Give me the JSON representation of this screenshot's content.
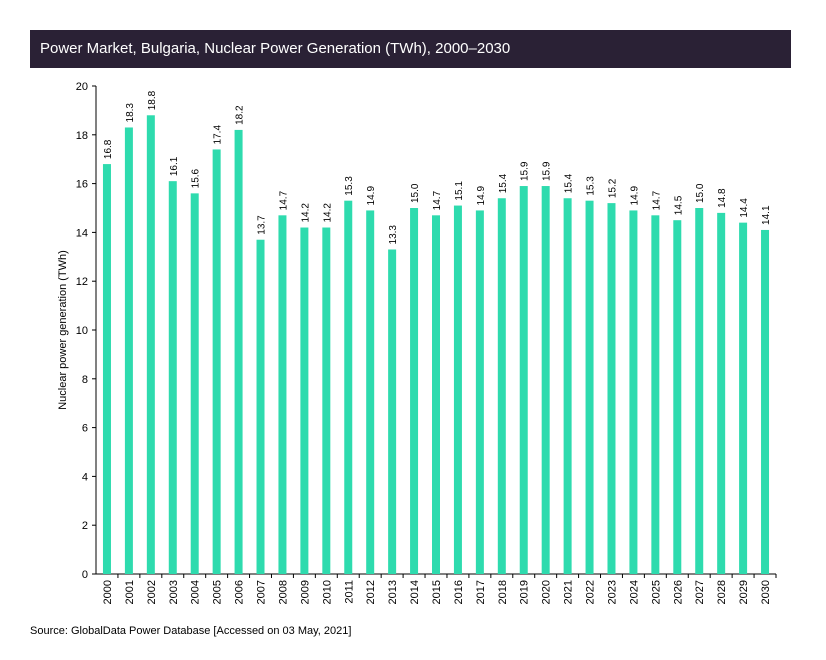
{
  "header": {
    "title": "Power Market, Bulgaria, Nuclear Power Generation (TWh), 2000–2030"
  },
  "footer": {
    "source": "Source: GlobalData Power Database [Accessed on 03 May, 2021]"
  },
  "colors": {
    "bar": "#2edbae",
    "title_background": "#2a2135",
    "axis": "#000000"
  },
  "chart_data": {
    "type": "bar",
    "title": "Power Market, Bulgaria, Nuclear Power Generation (TWh), 2000–2030",
    "xlabel": "",
    "ylabel": "Nuclear power generation (TWh)",
    "ylim": [
      0,
      20
    ],
    "yticks": [
      0,
      2,
      4,
      6,
      8,
      10,
      12,
      14,
      16,
      18,
      20
    ],
    "grid": false,
    "categories": [
      "2000",
      "2001",
      "2002",
      "2003",
      "2004",
      "2005",
      "2006",
      "2007",
      "2008",
      "2009",
      "2010",
      "2011",
      "2012",
      "2013",
      "2014",
      "2015",
      "2016",
      "2017",
      "2018",
      "2019",
      "2020",
      "2021",
      "2022",
      "2023",
      "2024",
      "2025",
      "2026",
      "2027",
      "2028",
      "2029",
      "2030"
    ],
    "values": [
      16.8,
      18.3,
      18.8,
      16.1,
      15.6,
      17.4,
      18.2,
      13.7,
      14.7,
      14.2,
      14.2,
      15.3,
      14.9,
      13.3,
      15.0,
      14.7,
      15.1,
      14.9,
      15.4,
      15.9,
      15.9,
      15.4,
      15.3,
      15.2,
      14.9,
      14.7,
      14.5,
      15.0,
      14.8,
      14.4,
      14.1
    ],
    "labels": [
      "16.8",
      "18.3",
      "18.8",
      "16.1",
      "15.6",
      "17.4",
      "18.2",
      "13.7",
      "14.7",
      "14.2",
      "14.2",
      "15.3",
      "14.9",
      "13.3",
      "15.0",
      "14.7",
      "15.1",
      "14.9",
      "15.4",
      "15.9",
      "15.9",
      "15.4",
      "15.3",
      "15.2",
      "14.9",
      "14.7",
      "14.5",
      "15.0",
      "14.8",
      "14.4",
      "14.1"
    ]
  }
}
